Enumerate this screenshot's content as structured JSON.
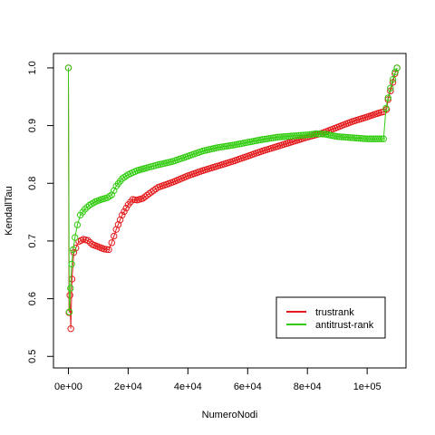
{
  "chart_data": {
    "type": "scatter",
    "xlabel": "NumeroNodi",
    "ylabel": "KendallTau",
    "xlim": [
      -5000,
      113000
    ],
    "ylim": [
      0.48,
      1.025
    ],
    "x_ticks": [
      0,
      20000,
      40000,
      60000,
      80000,
      100000
    ],
    "x_tick_labels": [
      "0e+00",
      "2e+04",
      "4e+04",
      "6e+04",
      "8e+04",
      "1e+05"
    ],
    "y_ticks": [
      0.5,
      0.6,
      0.7,
      0.8,
      0.9,
      1.0
    ],
    "y_tick_labels": [
      "0.5",
      "0.6",
      "0.7",
      "0.8",
      "0.9",
      "1.0"
    ],
    "grid": false,
    "legend_position": "bottom-right",
    "markers": "open circles joined by thin lines",
    "series": [
      {
        "name": "trustrank",
        "color": "#e41a1c",
        "keypoints": [
          [
            0,
            1.0
          ],
          [
            200,
            0.576
          ],
          [
            500,
            0.606
          ],
          [
            800,
            0.548
          ],
          [
            1200,
            0.634
          ],
          [
            1800,
            0.68
          ],
          [
            2500,
            0.688
          ],
          [
            3500,
            0.699
          ],
          [
            5000,
            0.703
          ],
          [
            6500,
            0.701
          ],
          [
            8000,
            0.694
          ],
          [
            10000,
            0.69
          ],
          [
            12000,
            0.686
          ],
          [
            13500,
            0.685
          ],
          [
            14500,
            0.697
          ],
          [
            16000,
            0.72
          ],
          [
            18000,
            0.745
          ],
          [
            20000,
            0.763
          ],
          [
            21500,
            0.772
          ],
          [
            23000,
            0.771
          ],
          [
            25000,
            0.774
          ],
          [
            27000,
            0.782
          ],
          [
            30000,
            0.793
          ],
          [
            35000,
            0.802
          ],
          [
            40000,
            0.813
          ],
          [
            45000,
            0.822
          ],
          [
            50000,
            0.83
          ],
          [
            55000,
            0.838
          ],
          [
            60000,
            0.847
          ],
          [
            65000,
            0.856
          ],
          [
            70000,
            0.864
          ],
          [
            75000,
            0.872
          ],
          [
            80000,
            0.88
          ],
          [
            85000,
            0.887
          ],
          [
            90000,
            0.897
          ],
          [
            95000,
            0.907
          ],
          [
            100000,
            0.915
          ],
          [
            104000,
            0.922
          ],
          [
            105500,
            0.924
          ],
          [
            106500,
            0.928
          ],
          [
            107000,
            0.945
          ],
          [
            107800,
            0.96
          ],
          [
            108600,
            0.975
          ],
          [
            109300,
            0.99
          ],
          [
            110000,
            1.0
          ]
        ]
      },
      {
        "name": "antitrust-rank",
        "color": "#33cc11",
        "keypoints": [
          [
            0,
            1.0
          ],
          [
            300,
            0.577
          ],
          [
            700,
            0.618
          ],
          [
            1100,
            0.66
          ],
          [
            1600,
            0.685
          ],
          [
            2200,
            0.706
          ],
          [
            3000,
            0.728
          ],
          [
            4000,
            0.745
          ],
          [
            5500,
            0.755
          ],
          [
            7000,
            0.762
          ],
          [
            9000,
            0.768
          ],
          [
            11000,
            0.772
          ],
          [
            13000,
            0.775
          ],
          [
            14500,
            0.78
          ],
          [
            16000,
            0.795
          ],
          [
            18000,
            0.808
          ],
          [
            20000,
            0.815
          ],
          [
            23000,
            0.822
          ],
          [
            27000,
            0.828
          ],
          [
            30000,
            0.832
          ],
          [
            35000,
            0.838
          ],
          [
            40000,
            0.847
          ],
          [
            45000,
            0.856
          ],
          [
            50000,
            0.862
          ],
          [
            55000,
            0.866
          ],
          [
            60000,
            0.871
          ],
          [
            65000,
            0.876
          ],
          [
            70000,
            0.88
          ],
          [
            75000,
            0.882
          ],
          [
            80000,
            0.884
          ],
          [
            83000,
            0.886
          ],
          [
            86000,
            0.885
          ],
          [
            90000,
            0.881
          ],
          [
            95000,
            0.879
          ],
          [
            100000,
            0.877
          ],
          [
            105500,
            0.877
          ],
          [
            106300,
            0.93
          ],
          [
            107000,
            0.948
          ],
          [
            107800,
            0.965
          ],
          [
            108600,
            0.98
          ],
          [
            109400,
            0.993
          ],
          [
            110000,
            1.0
          ]
        ]
      }
    ]
  }
}
